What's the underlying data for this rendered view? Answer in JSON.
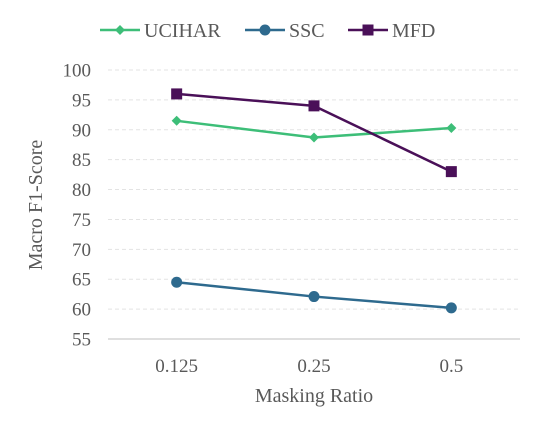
{
  "chart_data": {
    "type": "line",
    "xlabel": "Masking Ratio",
    "ylabel": "Macro F1-Score",
    "categories": [
      "0.125",
      "0.25",
      "0.5"
    ],
    "ylim": [
      55,
      100
    ],
    "yticks": [
      55,
      60,
      65,
      70,
      75,
      80,
      85,
      90,
      95,
      100
    ],
    "grid": true,
    "legend_position": "top",
    "series": [
      {
        "name": "UCIHAR",
        "values": [
          91.5,
          88.7,
          90.3
        ],
        "color": "#3dbe78",
        "marker": "diamond"
      },
      {
        "name": "SSC",
        "values": [
          64.5,
          62.1,
          60.2
        ],
        "color": "#2e6a8e",
        "marker": "circle"
      },
      {
        "name": "MFD",
        "values": [
          96.0,
          94.0,
          83.0
        ],
        "color": "#4a1058",
        "marker": "square"
      }
    ]
  }
}
